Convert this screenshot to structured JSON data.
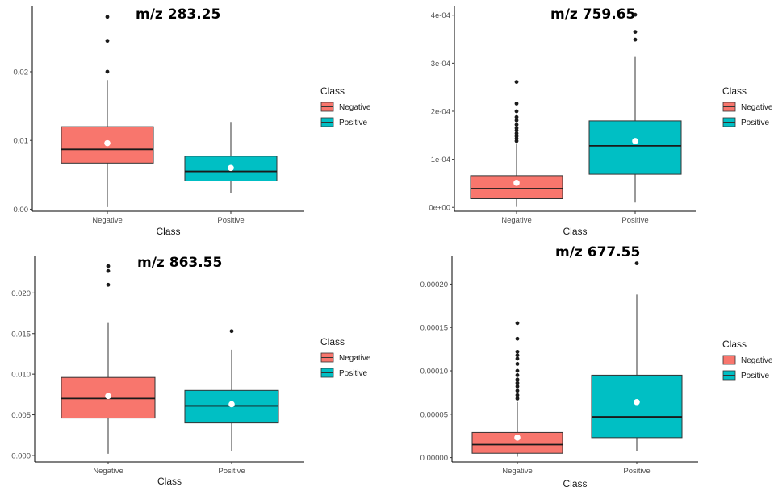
{
  "legend": {
    "title": "Class",
    "items": [
      {
        "label": "Negative",
        "color": "#F8766D"
      },
      {
        "label": "Positive",
        "color": "#00BFC4"
      }
    ]
  },
  "chart_data": [
    {
      "type": "box",
      "title": "m/z 283.25",
      "xlabel": "Class",
      "ylabel": "",
      "categories": [
        "Negative",
        "Positive"
      ],
      "ylim": [
        -0.0003,
        0.0295
      ],
      "yticks": [
        0.0,
        0.01,
        0.02
      ],
      "ytick_labels": [
        "0.00",
        "0.01",
        "0.02"
      ],
      "grid": false,
      "legend_position": "right",
      "boxes": [
        {
          "name": "Negative",
          "color": "#F8766D",
          "whisker_low": 0.0003,
          "q1": 0.0067,
          "median": 0.0087,
          "q3": 0.012,
          "whisker_high": 0.0188,
          "mean": 0.0096,
          "outliers": [
            0.02,
            0.0245,
            0.028
          ]
        },
        {
          "name": "Positive",
          "color": "#00BFC4",
          "whisker_low": 0.0024,
          "q1": 0.0041,
          "median": 0.0055,
          "q3": 0.0077,
          "whisker_high": 0.0127,
          "mean": 0.006,
          "outliers": []
        }
      ]
    },
    {
      "type": "box",
      "title": "m/z 759.65",
      "xlabel": "Class",
      "ylabel": "",
      "categories": [
        "Negative",
        "Positive"
      ],
      "ylim": [
        -8e-06,
        0.000418
      ],
      "yticks": [
        0.0,
        0.0001,
        0.0002,
        0.0003,
        0.0004
      ],
      "ytick_labels": [
        "0e+00",
        "1e-04",
        "2e-04",
        "3e-04",
        "4e-04"
      ],
      "grid": false,
      "legend_position": "right",
      "boxes": [
        {
          "name": "Negative",
          "color": "#F8766D",
          "whisker_low": 1e-06,
          "q1": 1.8e-05,
          "median": 3.9e-05,
          "q3": 6.6e-05,
          "whisker_high": 0.000132,
          "mean": 5.1e-05,
          "outliers": [
            0.000138,
            0.000143,
            0.000148,
            0.000154,
            0.00016,
            0.000165,
            0.000172,
            0.000181,
            0.000188,
            0.0002,
            0.000216,
            0.000261
          ]
        },
        {
          "name": "Positive",
          "color": "#00BFC4",
          "whisker_low": 1e-05,
          "q1": 6.9e-05,
          "median": 0.000128,
          "q3": 0.00018,
          "whisker_high": 0.000313,
          "mean": 0.000138,
          "outliers": [
            0.000349,
            0.000365,
            0.000401
          ]
        }
      ]
    },
    {
      "type": "box",
      "title": "m/z 863.55",
      "xlabel": "Class",
      "ylabel": "",
      "categories": [
        "Negative",
        "Positive"
      ],
      "ylim": [
        -0.0008,
        0.0245
      ],
      "yticks": [
        0.0,
        0.005,
        0.01,
        0.015,
        0.02
      ],
      "ytick_labels": [
        "0.000",
        "0.005",
        "0.010",
        "0.015",
        "0.020"
      ],
      "grid": false,
      "legend_position": "right",
      "boxes": [
        {
          "name": "Negative",
          "color": "#F8766D",
          "whisker_low": 0.0002,
          "q1": 0.0046,
          "median": 0.007,
          "q3": 0.0096,
          "whisker_high": 0.0163,
          "mean": 0.0073,
          "outliers": [
            0.021,
            0.0227,
            0.0233
          ]
        },
        {
          "name": "Positive",
          "color": "#00BFC4",
          "whisker_low": 0.0005,
          "q1": 0.004,
          "median": 0.0061,
          "q3": 0.008,
          "whisker_high": 0.013,
          "mean": 0.0063,
          "outliers": [
            0.0153
          ]
        }
      ]
    },
    {
      "type": "box",
      "title": "m/z 677.55",
      "xlabel": "Class",
      "ylabel": "",
      "categories": [
        "Negative",
        "Positive"
      ],
      "ylim": [
        -5e-06,
        0.000232
      ],
      "yticks": [
        0.0,
        5e-05,
        0.0001,
        0.00015,
        0.0002
      ],
      "ytick_labels": [
        "0.00000",
        "0.00005",
        "0.00010",
        "0.00015",
        "0.00020"
      ],
      "grid": false,
      "legend_position": "right",
      "boxes": [
        {
          "name": "Negative",
          "color": "#F8766D",
          "whisker_low": 1e-06,
          "q1": 5e-06,
          "median": 1.5e-05,
          "q3": 2.9e-05,
          "whisker_high": 6.4e-05,
          "mean": 2.3e-05,
          "outliers": [
            6.8e-05,
            7.2e-05,
            7.7e-05,
            8.2e-05,
            8.6e-05,
            9e-05,
            9.5e-05,
            0.0001,
            0.000108,
            0.000114,
            0.000118,
            0.000122,
            0.000137,
            0.000155
          ]
        },
        {
          "name": "Positive",
          "color": "#00BFC4",
          "whisker_low": 8e-06,
          "q1": 2.3e-05,
          "median": 4.7e-05,
          "q3": 9.5e-05,
          "whisker_high": 0.000188,
          "mean": 6.4e-05,
          "outliers": [
            0.000224
          ]
        }
      ]
    }
  ]
}
